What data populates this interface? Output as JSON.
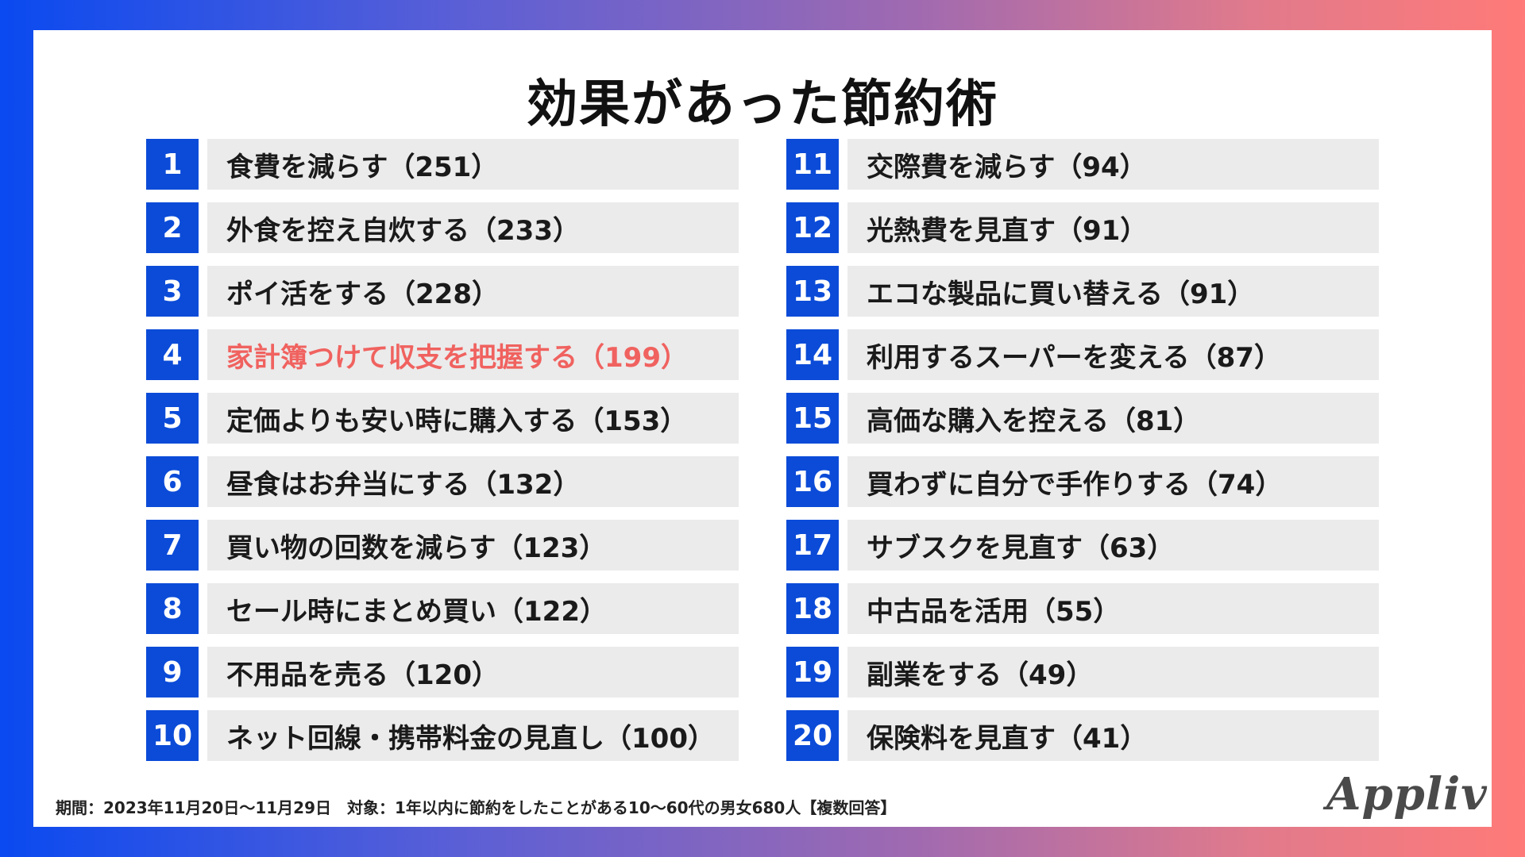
{
  "page": {
    "title": "効果があった節約術",
    "footnote": "期間：2023年11月20日〜11月29日　対象：1年以内に節約をしたことがある10〜60代の男女680人【複数回答】",
    "logo_text": "Appliv",
    "colors": {
      "rank_badge": "#0b4bd8",
      "bar_bg": "#ebebeb",
      "highlight_text": "#f0625f",
      "text": "#1a1a1a"
    }
  },
  "chart_data": {
    "type": "table",
    "title": "効果があった節約術",
    "highlighted_rank": 4,
    "rows": [
      {
        "rank": "1",
        "label": "食費を減らす",
        "count": "（251）"
      },
      {
        "rank": "2",
        "label": "外食を控え自炊する",
        "count": "（233）"
      },
      {
        "rank": "3",
        "label": "ポイ活をする",
        "count": "（228）"
      },
      {
        "rank": "4",
        "label": "家計簿つけて収支を把握する",
        "count": "（199）"
      },
      {
        "rank": "5",
        "label": "定価よりも安い時に購入する",
        "count": "（153）"
      },
      {
        "rank": "6",
        "label": "昼食はお弁当にする",
        "count": "（132）"
      },
      {
        "rank": "7",
        "label": "買い物の回数を減らす",
        "count": "（123）"
      },
      {
        "rank": "8",
        "label": "セール時にまとめ買い",
        "count": "（122）"
      },
      {
        "rank": "9",
        "label": "不用品を売る",
        "count": "（120）"
      },
      {
        "rank": "10",
        "label": "ネット回線・携帯料金の見直し",
        "count": "（100）"
      },
      {
        "rank": "11",
        "label": "交際費を減らす",
        "count": "（94）"
      },
      {
        "rank": "12",
        "label": "光熱費を見直す",
        "count": "（91）"
      },
      {
        "rank": "13",
        "label": "エコな製品に買い替える",
        "count": "（91）"
      },
      {
        "rank": "14",
        "label": "利用するスーパーを変える",
        "count": "（87）"
      },
      {
        "rank": "15",
        "label": "高価な購入を控える",
        "count": "（81）"
      },
      {
        "rank": "16",
        "label": "買わずに自分で手作りする",
        "count": "（74）"
      },
      {
        "rank": "17",
        "label": "サブスクを見直す",
        "count": "（63）"
      },
      {
        "rank": "18",
        "label": "中古品を活用",
        "count": "（55）"
      },
      {
        "rank": "19",
        "label": "副業をする",
        "count": "（49）"
      },
      {
        "rank": "20",
        "label": "保険料を見直す",
        "count": "（41）"
      }
    ]
  }
}
